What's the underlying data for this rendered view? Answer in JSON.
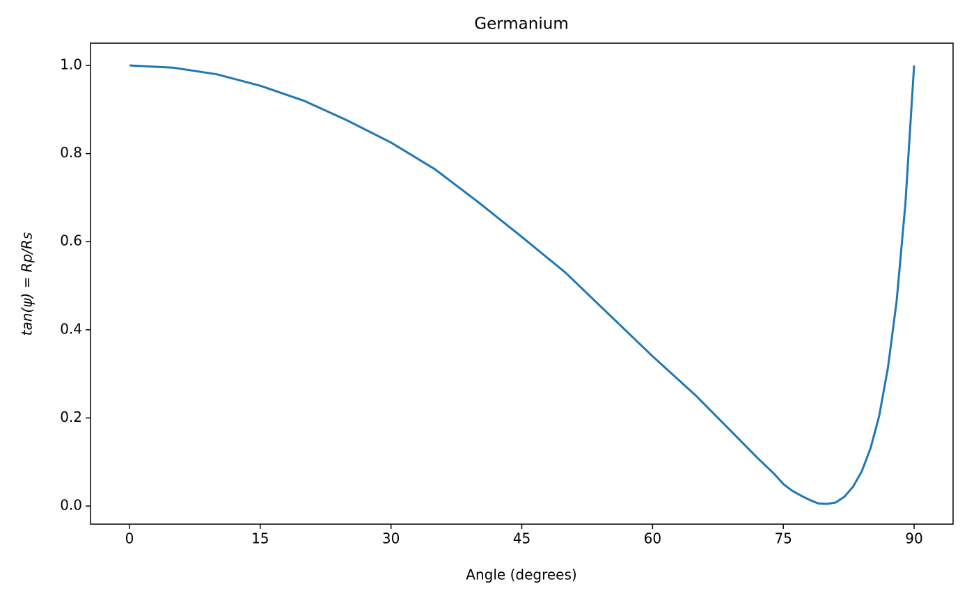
{
  "chart_data": {
    "type": "line",
    "title": "Germanium",
    "x_label": "Angle (degrees)",
    "y_label": "tan(ψ) = Rp/Rs",
    "x": [
      0,
      5,
      10,
      15,
      20,
      25,
      30,
      35,
      40,
      45,
      50,
      55,
      60,
      65,
      70,
      72,
      74,
      75,
      76,
      77,
      78,
      79,
      80,
      81,
      82,
      83,
      84,
      85,
      86,
      87,
      88,
      89,
      90
    ],
    "series": [
      {
        "name": "tan(ψ)",
        "color": "#1f77b4",
        "values": [
          1.0,
          0.995,
          0.98,
          0.954,
          0.92,
          0.875,
          0.825,
          0.765,
          0.69,
          0.611,
          0.53,
          0.435,
          0.34,
          0.25,
          0.15,
          0.11,
          0.072,
          0.05,
          0.035,
          0.024,
          0.014,
          0.006,
          0.005,
          0.008,
          0.021,
          0.044,
          0.079,
          0.131,
          0.205,
          0.314,
          0.466,
          0.686,
          1.0
        ]
      }
    ],
    "xlim": [
      -4.47,
      94.47
    ],
    "ylim": [
      -0.041,
      1.0506
    ],
    "xticks": [
      0,
      15,
      30,
      45,
      60,
      75,
      90
    ],
    "yticks": [
      {
        "value": 0,
        "label": "0.0"
      },
      0.2,
      0.4,
      0.6,
      0.8,
      {
        "value": 1,
        "label": "1.0"
      }
    ],
    "grid": false
  }
}
